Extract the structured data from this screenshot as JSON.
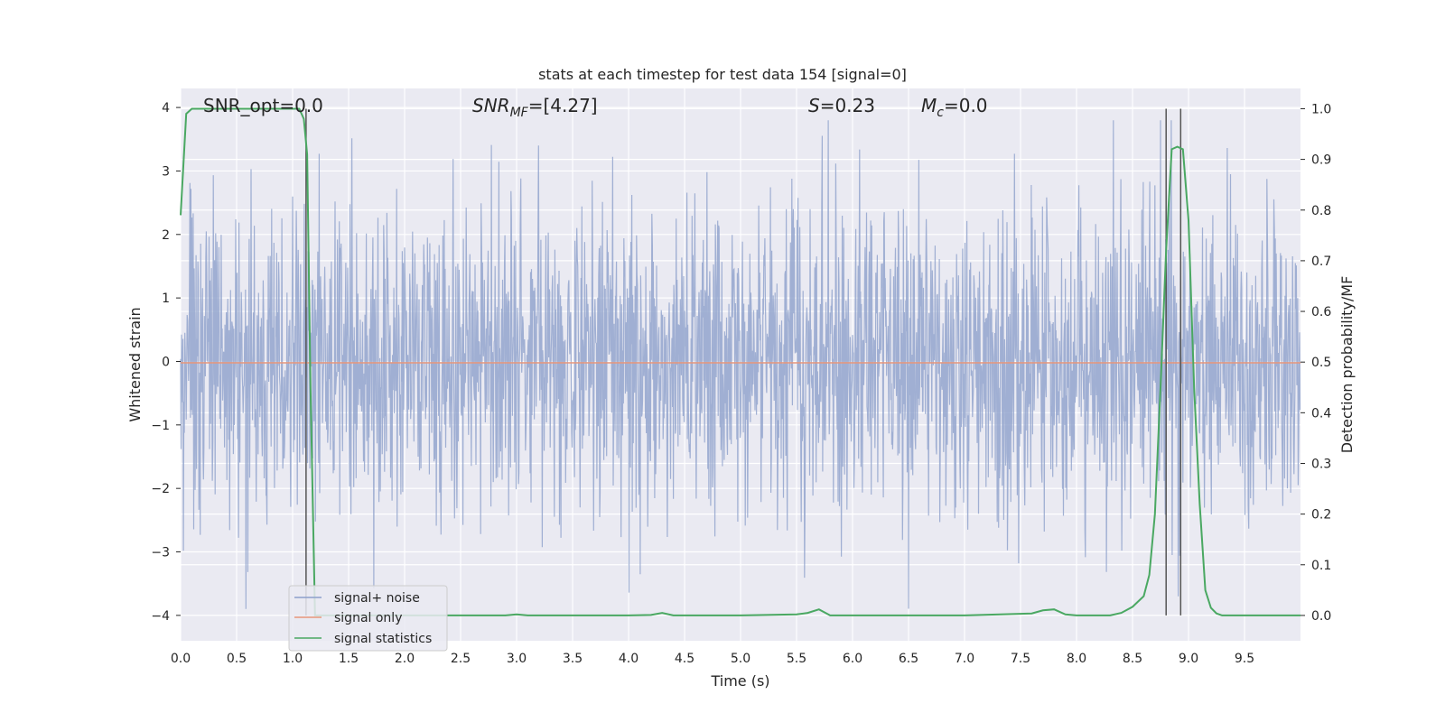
{
  "chart_data": {
    "type": "line",
    "title": "stats at each timestep for test data 154 [signal=0]",
    "xlabel": "Time (s)",
    "ylabel_left": "Whitened strain",
    "ylabel_right": "Detection probability/MF",
    "xlim": [
      0.0,
      10.0
    ],
    "ylim_left": [
      -4.4,
      4.3
    ],
    "ylim_right": [
      -0.05,
      1.04
    ],
    "x_ticks": [
      "0.0",
      "0.5",
      "1.0",
      "1.5",
      "2.0",
      "2.5",
      "3.0",
      "3.5",
      "4.0",
      "4.5",
      "5.0",
      "5.5",
      "6.0",
      "6.5",
      "7.0",
      "7.5",
      "8.0",
      "8.5",
      "9.0",
      "9.5"
    ],
    "y_left_ticks": [
      "4",
      "3",
      "2",
      "1",
      "0",
      "−1",
      "−2",
      "−3",
      "−4"
    ],
    "y_right_ticks": [
      "1.0",
      "0.9",
      "0.8",
      "0.7",
      "0.6",
      "0.5",
      "0.4",
      "0.3",
      "0.2",
      "0.1",
      "0.0"
    ],
    "grid": true,
    "annotations": {
      "snr_opt": "SNR_opt=0.0",
      "snr_mf_main": "SNR",
      "snr_mf_sub": "MF",
      "snr_mf_value": "=[4.27]",
      "s_main": "S",
      "s_value": "=0.23",
      "mc_main": "M",
      "mc_sub": "c",
      "mc_value": "=0.0"
    },
    "vertical_markers_s": [
      1.12,
      8.8,
      8.93
    ],
    "legend_position": "lower-left",
    "series": [
      {
        "name": "signal+ noise",
        "color": "#8da0cb",
        "description_values": "white gaussian noise, amplitude ~±4"
      },
      {
        "name": "signal only",
        "color": "#e8967a",
        "values_constant": 0.0
      },
      {
        "name": "signal statistics",
        "color": "#4aa862",
        "axis": "right",
        "x": [
          0.0,
          0.05,
          0.1,
          0.2,
          0.3,
          0.5,
          0.8,
          1.0,
          1.06,
          1.1,
          1.13,
          1.16,
          1.2,
          1.3,
          1.5,
          2.0,
          2.5,
          2.9,
          3.0,
          3.1,
          3.5,
          4.0,
          4.2,
          4.3,
          4.4,
          5.0,
          5.5,
          5.6,
          5.7,
          5.8,
          6.0,
          7.0,
          7.6,
          7.7,
          7.8,
          7.9,
          8.0,
          8.3,
          8.4,
          8.5,
          8.6,
          8.65,
          8.7,
          8.75,
          8.8,
          8.85,
          8.9,
          8.95,
          9.0,
          9.05,
          9.1,
          9.15,
          9.2,
          9.25,
          9.3,
          9.4,
          10.0
        ],
        "values": [
          0.79,
          0.99,
          1.0,
          1.0,
          1.0,
          1.0,
          1.0,
          1.0,
          1.0,
          0.98,
          0.91,
          0.45,
          0.0,
          0.0,
          0.0,
          0.0,
          0.0,
          0.0,
          0.002,
          0.0,
          0.0,
          0.0,
          0.001,
          0.005,
          0.0,
          0.0,
          0.002,
          0.005,
          0.012,
          0.0,
          0.0,
          0.0,
          0.004,
          0.01,
          0.012,
          0.002,
          0.0,
          0.0,
          0.005,
          0.017,
          0.038,
          0.08,
          0.2,
          0.45,
          0.72,
          0.92,
          0.925,
          0.92,
          0.78,
          0.45,
          0.22,
          0.05,
          0.015,
          0.004,
          0.0,
          0.0,
          0.0
        ]
      }
    ]
  }
}
